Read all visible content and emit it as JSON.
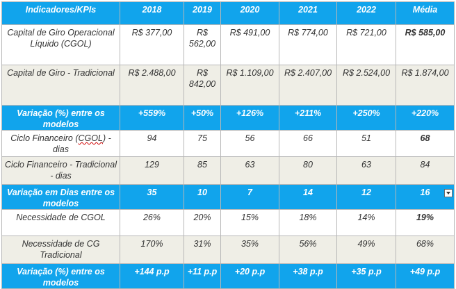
{
  "header": {
    "label": "Indicadores/KPIs",
    "years": [
      "2018",
      "2019",
      "2020",
      "2021",
      "2022"
    ],
    "media": "Média"
  },
  "rows": {
    "cgol_capital": {
      "label": "Capital de Giro Operacional Líquido (CGOL)",
      "values": [
        "R$ 377,00",
        "R$ 562,00",
        "R$ 491,00",
        "R$ 774,00",
        "R$ 721,00"
      ],
      "media": "R$ 585,00"
    },
    "trad_capital": {
      "label": "Capital de Giro - Tradicional",
      "values": [
        "R$ 2.488,00",
        "R$ 842,00",
        "R$ 1.109,00",
        "R$ 2.407,00",
        "R$ 2.524,00"
      ],
      "media": "R$ 1.874,00"
    },
    "var_capital": {
      "label": "Variação (%) entre os modelos",
      "values": [
        "+559%",
        "+50%",
        "+126%",
        "+211%",
        "+250%"
      ],
      "media": "+220%"
    },
    "ciclo_cgol": {
      "label_pre": "Ciclo Financeiro (",
      "label_squig": "CGOL",
      "label_post": ") - dias",
      "values": [
        "94",
        "75",
        "56",
        "66",
        "51"
      ],
      "media": "68"
    },
    "ciclo_trad": {
      "label": "Ciclo Financeiro - Tradicional - dias",
      "values": [
        "129",
        "85",
        "63",
        "80",
        "63"
      ],
      "media": "84"
    },
    "var_dias": {
      "label": "Variação em Dias entre os modelos",
      "values": [
        "35",
        "10",
        "7",
        "14",
        "12"
      ],
      "media": "16"
    },
    "nec_cgol": {
      "label": "Necessidade de CGOL",
      "values": [
        "26%",
        "20%",
        "15%",
        "18%",
        "14%"
      ],
      "media": "19%"
    },
    "nec_cg": {
      "label": "Necessidade de CG Tradicional",
      "values": [
        "170%",
        "31%",
        "35%",
        "56%",
        "49%"
      ],
      "media": "68%"
    },
    "var_pp": {
      "label": "Variação (%) entre os modelos",
      "values": [
        "+144 p.p",
        "+11 p.p",
        "+20 p.p",
        "+38 p.p",
        "+35 p.p"
      ],
      "media": "+49 p.p"
    }
  },
  "colors": {
    "header_blue": "#11a4ec",
    "gray_row": "#efeee6"
  }
}
